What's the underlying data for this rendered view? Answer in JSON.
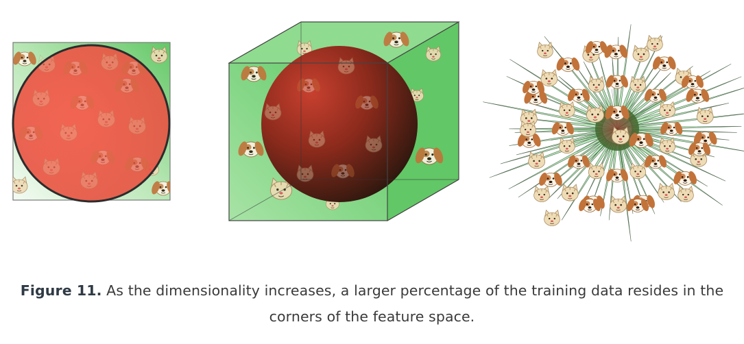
{
  "figure": {
    "caption_label": "Figure 11.",
    "caption_text": "As the dimensionality increases, a larger percentage of the training data resides in the corners of the feature space.",
    "panels": [
      {
        "name": "square-with-circle",
        "dimension": "2D"
      },
      {
        "name": "cube-with-sphere",
        "dimension": "3D"
      },
      {
        "name": "high-dimensional-spiky-ball",
        "dimension": "high"
      }
    ]
  },
  "colors": {
    "green_light": "#d7f0d5",
    "green": "#6ccf6f",
    "red": "#ff5a4c",
    "dark_red": "#6b2018",
    "spike_green": "#7fd283",
    "cat": "#eedcb6",
    "dog": "#c2733a",
    "caption_text": "#3a3a3a",
    "caption_label": "#2f3a44"
  },
  "icons": [
    "cat-face-icon",
    "dog-face-icon"
  ]
}
